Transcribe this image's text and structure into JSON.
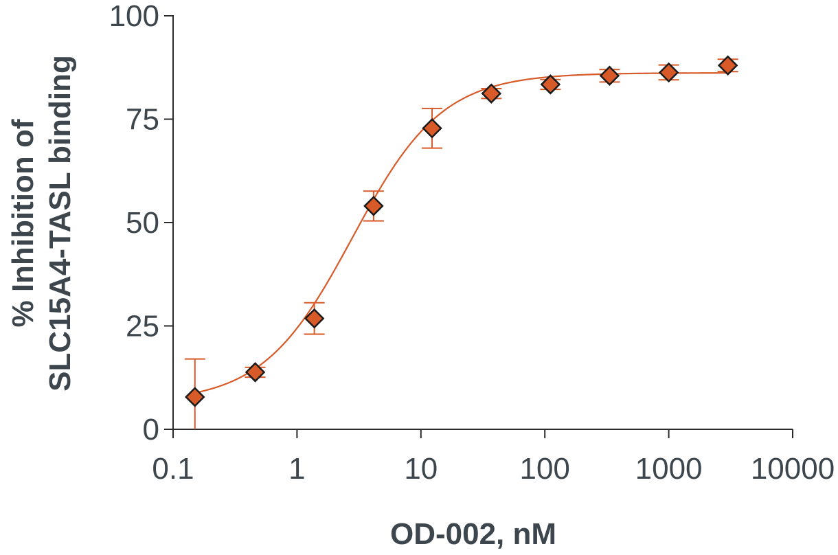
{
  "chart_data": {
    "type": "scatter",
    "xlabel": "OD-002, nM",
    "ylabel_lines": [
      "% Inhibition of",
      "SLC15A4-TASL binding"
    ],
    "x_scale": "log",
    "xlim": [
      0.1,
      10000
    ],
    "ylim": [
      0,
      100
    ],
    "x_ticks": [
      0.1,
      1,
      10,
      100,
      1000,
      10000
    ],
    "x_tick_labels": [
      "0.1",
      "1",
      "10",
      "100",
      "1000",
      "10000"
    ],
    "y_ticks": [
      0,
      25,
      50,
      75,
      100
    ],
    "y_tick_labels": [
      "0",
      "25",
      "50",
      "75",
      "100"
    ],
    "grid": false,
    "series": [
      {
        "marker": "diamond",
        "color": "#d85a28",
        "x": [
          0.15,
          0.46,
          1.38,
          4.15,
          12.3,
          37,
          111,
          333,
          1000,
          3000
        ],
        "y": [
          7.8,
          13.8,
          26.8,
          54,
          72.8,
          81.2,
          83.4,
          85.5,
          86.3,
          88
        ],
        "err": [
          9.2,
          1.2,
          3.8,
          3.6,
          4.8,
          1.2,
          1.2,
          1.5,
          1.8,
          1.5
        ]
      }
    ],
    "fit": {
      "model": "four-parameter logistic",
      "bottom": 6.5,
      "top": 86.2,
      "ec50": 2.8,
      "hill": 1.2
    }
  }
}
